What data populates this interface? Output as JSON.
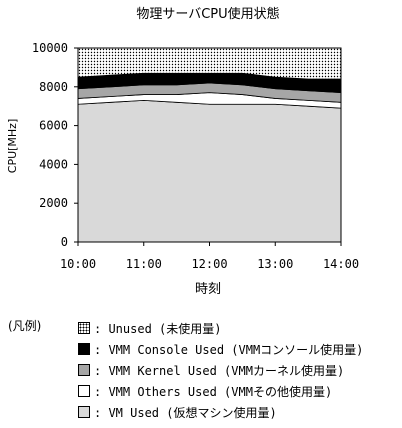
{
  "chart_data": {
    "type": "area",
    "stacked": true,
    "title": "物理サーバCPU使用状態",
    "xlabel": "時刻",
    "ylabel": "CPU[MHz]",
    "ylim": [
      0,
      10000
    ],
    "yticks": [
      0,
      2000,
      4000,
      6000,
      8000,
      10000
    ],
    "x": [
      "10:00",
      "10:30",
      "11:00",
      "11:30",
      "12:00",
      "12:30",
      "13:00",
      "13:30",
      "14:00"
    ],
    "xticks": [
      "10:00",
      "11:00",
      "12:00",
      "13:00",
      "14:00"
    ],
    "grid": false,
    "series": [
      {
        "name": "VM Used",
        "values": [
          7100,
          7200,
          7300,
          7200,
          7100,
          7100,
          7100,
          7000,
          6900
        ],
        "color": "#d9d9d9"
      },
      {
        "name": "VMM Others Used",
        "values": [
          300,
          300,
          300,
          400,
          600,
          500,
          300,
          300,
          300
        ],
        "color": "#ffffff"
      },
      {
        "name": "VMM Kernel Used",
        "values": [
          500,
          500,
          500,
          500,
          500,
          500,
          500,
          500,
          500
        ],
        "color": "#a6a6a6"
      },
      {
        "name": "VMM Console Used",
        "values": [
          600,
          600,
          600,
          600,
          500,
          600,
          600,
          600,
          700
        ],
        "color": "#000000"
      },
      {
        "name": "Unused",
        "values": [
          1500,
          1400,
          1300,
          1300,
          1300,
          1300,
          1500,
          1600,
          1600
        ],
        "pattern": "dots"
      }
    ]
  },
  "legend": {
    "title": "(凡例)",
    "items": [
      {
        "swatch": "sw-unused",
        "label": ": Unused (未使用量)"
      },
      {
        "swatch": "sw-console",
        "label": ": VMM Console Used (VMMコンソール使用量)"
      },
      {
        "swatch": "sw-kernel",
        "label": ": VMM Kernel Used (VMMカーネル使用量)"
      },
      {
        "swatch": "sw-others",
        "label": ": VMM Others Used (VMMその他使用量)"
      },
      {
        "swatch": "sw-vm",
        "label": ": VM Used (仮想マシン使用量)"
      }
    ]
  }
}
